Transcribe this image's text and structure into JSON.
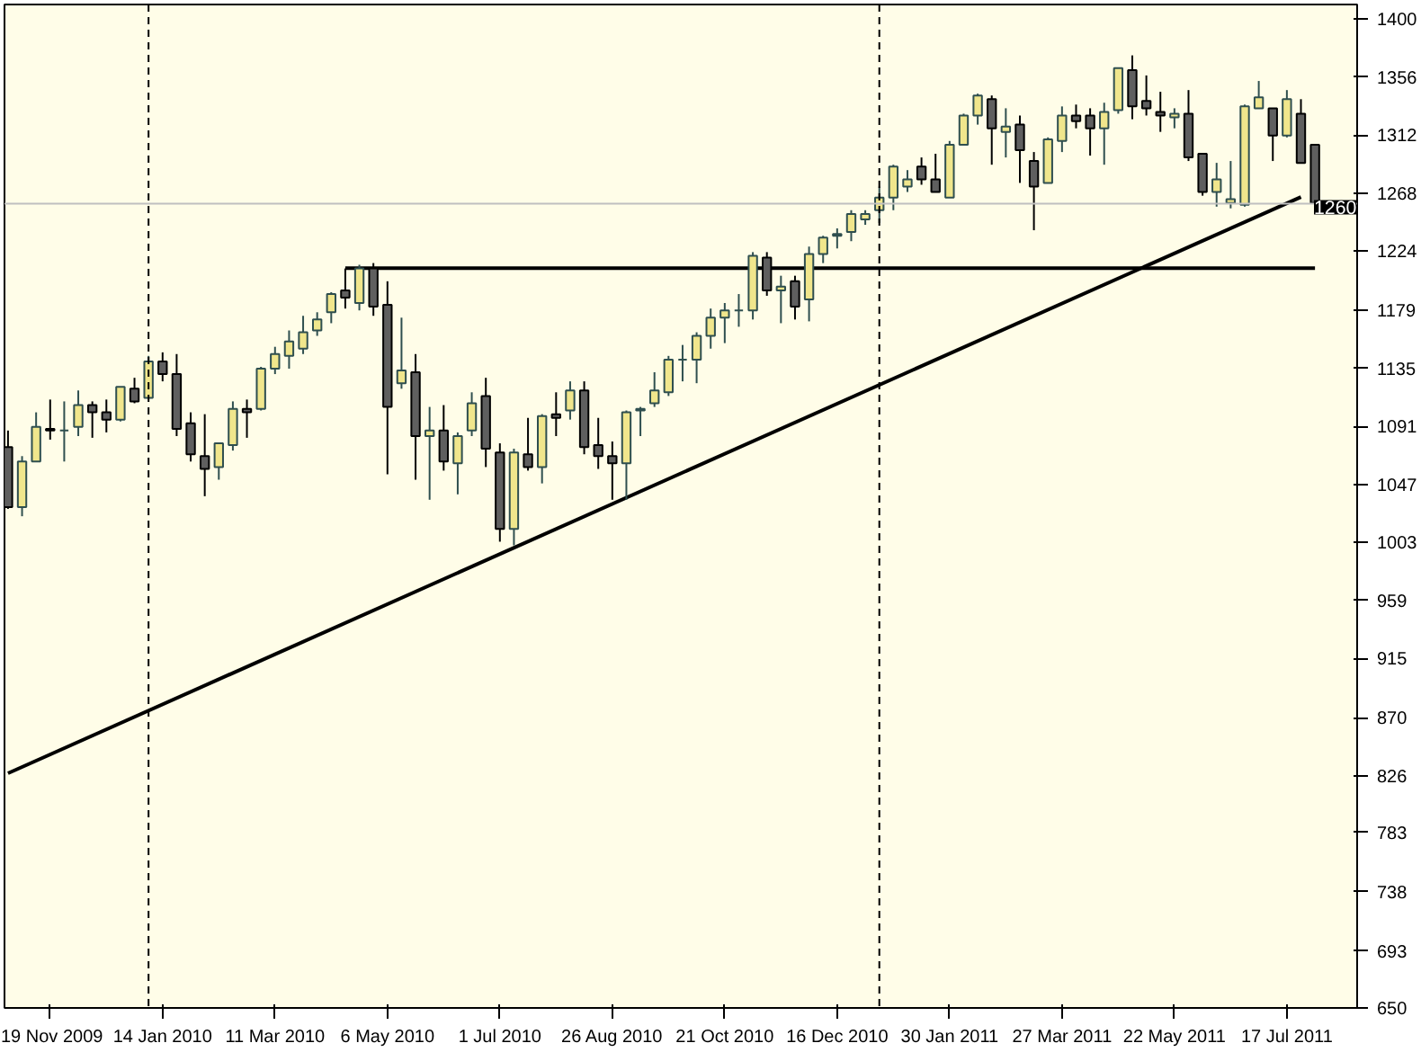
{
  "chart_data": {
    "type": "candlestick",
    "categories": [
      null,
      null,
      null,
      "19 Nov 2009",
      null,
      null,
      null,
      null,
      null,
      null,
      null,
      "14 Jan 2010",
      null,
      null,
      null,
      null,
      null,
      null,
      null,
      "11 Mar 2010",
      null,
      null,
      null,
      null,
      null,
      null,
      null,
      "6 May 2010",
      null,
      null,
      null,
      null,
      null,
      null,
      null,
      "1 Jul 2010",
      null,
      null,
      null,
      null,
      null,
      null,
      null,
      "26 Aug 2010",
      null,
      null,
      null,
      null,
      null,
      null,
      null,
      "21 Oct 2010",
      null,
      null,
      null,
      null,
      null,
      null,
      null,
      "16 Dec 2010",
      null,
      null,
      null,
      null,
      null,
      null,
      null,
      "30 Jan 2011",
      null,
      null,
      null,
      null,
      null,
      null,
      null,
      "27 Mar 2011",
      null,
      null,
      null,
      null,
      null,
      null,
      null,
      "22 May 2011",
      null,
      null,
      null,
      null,
      null,
      null,
      null,
      "17 Jul 2011",
      null,
      null
    ],
    "ohlc": [
      [
        1075.4,
        1087.9,
        1028.5,
        1029.8
      ],
      [
        1029.8,
        1068.5,
        1022.9,
        1064.4
      ],
      [
        1064.4,
        1101.7,
        1064.4,
        1090.6
      ],
      [
        1089.2,
        1111.4,
        1081.0,
        1087.9
      ],
      [
        1087.9,
        1110.0,
        1064.4,
        1087.9
      ],
      [
        1090.6,
        1118.3,
        1083.7,
        1107.2
      ],
      [
        1107.2,
        1110.0,
        1082.4,
        1101.7
      ],
      [
        1101.7,
        1111.4,
        1086.5,
        1096.2
      ],
      [
        1096.2,
        1121.0,
        1094.8,
        1121.0
      ],
      [
        1119.6,
        1127.9,
        1108.6,
        1110.0
      ],
      [
        1112.7,
        1144.5,
        1112.7,
        1140.3
      ],
      [
        1140.3,
        1147.2,
        1125.2,
        1130.7
      ],
      [
        1130.7,
        1145.9,
        1083.7,
        1089.2
      ],
      [
        1093.4,
        1101.7,
        1064.4,
        1069.9
      ],
      [
        1068.5,
        1100.3,
        1038.1,
        1058.8
      ],
      [
        1060.2,
        1078.2,
        1050.6,
        1078.2
      ],
      [
        1076.8,
        1110.0,
        1072.7,
        1104.4
      ],
      [
        1104.4,
        1111.4,
        1082.4,
        1101.7
      ],
      [
        1104.4,
        1136.2,
        1103.1,
        1134.8
      ],
      [
        1134.8,
        1151.4,
        1130.7,
        1145.9
      ],
      [
        1144.5,
        1163.8,
        1134.8,
        1155.5
      ],
      [
        1150.0,
        1174.9,
        1145.9,
        1162.4
      ],
      [
        1163.8,
        1177.6,
        1159.7,
        1172.1
      ],
      [
        1177.6,
        1192.8,
        1169.3,
        1191.4
      ],
      [
        1194.2,
        1210.8,
        1180.4,
        1188.7
      ],
      [
        1184.6,
        1213.6,
        1179.0,
        1210.8
      ],
      [
        1210.8,
        1214.9,
        1174.9,
        1181.8
      ],
      [
        1183.2,
        1201.1,
        1054.7,
        1105.8
      ],
      [
        1123.8,
        1173.5,
        1119.6,
        1133.4
      ],
      [
        1132.1,
        1145.9,
        1050.6,
        1083.7
      ],
      [
        1083.7,
        1105.8,
        1035.4,
        1087.9
      ],
      [
        1087.9,
        1107.2,
        1057.5,
        1064.4
      ],
      [
        1063.0,
        1086.5,
        1039.5,
        1083.7
      ],
      [
        1087.9,
        1116.9,
        1083.7,
        1108.6
      ],
      [
        1114.1,
        1127.9,
        1060.2,
        1074.1
      ],
      [
        1071.3,
        1078.2,
        1003.6,
        1013.3
      ],
      [
        1013.3,
        1074.1,
        1000.8,
        1071.3
      ],
      [
        1069.9,
        1097.5,
        1057.5,
        1060.2
      ],
      [
        1060.2,
        1100.3,
        1047.8,
        1098.9
      ],
      [
        1100.3,
        1116.9,
        1083.7,
        1097.5
      ],
      [
        1103.1,
        1125.2,
        1096.2,
        1118.3
      ],
      [
        1118.3,
        1125.2,
        1069.9,
        1075.4
      ],
      [
        1076.8,
        1097.5,
        1058.8,
        1068.5
      ],
      [
        1068.5,
        1079.6,
        1035.4,
        1063.0
      ],
      [
        1063.0,
        1103.1,
        1035.4,
        1101.7
      ],
      [
        1103.1,
        1105.8,
        1083.7,
        1104.4
      ],
      [
        1108.6,
        1132.1,
        1105.8,
        1118.3
      ],
      [
        1116.9,
        1144.5,
        1114.1,
        1141.7
      ],
      [
        1141.7,
        1152.8,
        1125.2,
        1141.7
      ],
      [
        1141.7,
        1162.4,
        1123.8,
        1159.7
      ],
      [
        1159.7,
        1180.4,
        1150.0,
        1173.5
      ],
      [
        1173.5,
        1184.6,
        1154.2,
        1179.0
      ],
      [
        1179.0,
        1191.4,
        1166.6,
        1179.0
      ],
      [
        1179.0,
        1223.2,
        1172.1,
        1220.4
      ],
      [
        1219.1,
        1223.2,
        1190.1,
        1194.2
      ],
      [
        1194.2,
        1205.3,
        1169.3,
        1197.0
      ],
      [
        1201.1,
        1205.3,
        1172.1,
        1181.8
      ],
      [
        1187.3,
        1227.4,
        1170.7,
        1221.8
      ],
      [
        1221.8,
        1235.6,
        1214.9,
        1234.3
      ],
      [
        1235.6,
        1241.2,
        1226.0,
        1237.0
      ],
      [
        1238.4,
        1255.0,
        1231.5,
        1252.2
      ],
      [
        1248.1,
        1255.0,
        1243.9,
        1252.2
      ],
      [
        1255.0,
        1272.9,
        1245.3,
        1264.6
      ],
      [
        1264.6,
        1289.5,
        1255.0,
        1288.1
      ],
      [
        1272.9,
        1285.4,
        1268.8,
        1278.4
      ],
      [
        1288.1,
        1295.0,
        1274.3,
        1278.4
      ],
      [
        1278.4,
        1297.8,
        1268.8,
        1268.8
      ],
      [
        1264.6,
        1307.5,
        1264.6,
        1304.7
      ],
      [
        1304.7,
        1328.2,
        1304.7,
        1326.8
      ],
      [
        1326.8,
        1343.4,
        1319.9,
        1342.0
      ],
      [
        1339.2,
        1342.0,
        1289.5,
        1317.1
      ],
      [
        1314.4,
        1332.3,
        1295.0,
        1318.5
      ],
      [
        1319.9,
        1326.8,
        1275.7,
        1300.5
      ],
      [
        1292.3,
        1299.1,
        1239.8,
        1272.9
      ],
      [
        1275.7,
        1310.2,
        1275.7,
        1308.8
      ],
      [
        1307.5,
        1333.7,
        1299.1,
        1326.8
      ],
      [
        1326.8,
        1335.1,
        1317.1,
        1322.6
      ],
      [
        1326.8,
        1332.3,
        1296.4,
        1317.1
      ],
      [
        1317.1,
        1336.5,
        1289.5,
        1329.5
      ],
      [
        1330.9,
        1362.7,
        1328.2,
        1362.7
      ],
      [
        1361.3,
        1372.4,
        1324.0,
        1333.7
      ],
      [
        1337.8,
        1357.2,
        1326.8,
        1332.3
      ],
      [
        1329.5,
        1344.8,
        1314.4,
        1326.8
      ],
      [
        1325.4,
        1332.3,
        1317.1,
        1328.2
      ],
      [
        1328.2,
        1346.1,
        1292.3,
        1295.0
      ],
      [
        1297.8,
        1297.8,
        1266.0,
        1268.8
      ],
      [
        1268.8,
        1290.9,
        1257.7,
        1278.4
      ],
      [
        1260.5,
        1292.3,
        1256.4,
        1263.3
      ],
      [
        1259.1,
        1335.1,
        1257.7,
        1333.7
      ],
      [
        1332.3,
        1353.0,
        1332.3,
        1340.6
      ],
      [
        1332.3,
        1332.3,
        1292.3,
        1311.6
      ],
      [
        1311.6,
        1346.1,
        1310.2,
        1339.2
      ],
      [
        1328.2,
        1339.2,
        1290.9,
        1290.9
      ],
      [
        1304.7,
        1304.7,
        1260.5,
        1260.5
      ]
    ],
    "series": [
      {
        "type": "line",
        "values": [
          828,
          null,
          null,
          null,
          null,
          null,
          null,
          null,
          null,
          null,
          null,
          null,
          null,
          null,
          null,
          null,
          null,
          null,
          null,
          null,
          null,
          null,
          null,
          null,
          null,
          null,
          null,
          null,
          null,
          null,
          null,
          null,
          null,
          null,
          null,
          null,
          null,
          null,
          null,
          null,
          null,
          null,
          null,
          null,
          null,
          null,
          null,
          null,
          null,
          null,
          null,
          null,
          null,
          null,
          null,
          null,
          null,
          null,
          null,
          null,
          null,
          null,
          null,
          null,
          null,
          null,
          null,
          null,
          null,
          null,
          null,
          null,
          null,
          null,
          null,
          null,
          null,
          null,
          null,
          null,
          null,
          null,
          null,
          null,
          null,
          null,
          null,
          null,
          null,
          null,
          null,
          null,
          1265,
          null
        ],
        "color": "#000000"
      },
      {
        "type": "line",
        "values": [
          null,
          null,
          null,
          null,
          null,
          null,
          null,
          null,
          null,
          null,
          null,
          null,
          null,
          null,
          null,
          null,
          null,
          null,
          null,
          null,
          null,
          null,
          null,
          null,
          1211,
          null,
          null,
          null,
          null,
          null,
          null,
          null,
          null,
          null,
          null,
          null,
          null,
          null,
          null,
          null,
          null,
          null,
          null,
          null,
          null,
          null,
          null,
          null,
          null,
          null,
          null,
          null,
          null,
          null,
          null,
          null,
          null,
          null,
          null,
          null,
          null,
          null,
          null,
          null,
          null,
          null,
          null,
          null,
          null,
          null,
          null,
          null,
          null,
          null,
          null,
          null,
          null,
          null,
          null,
          null,
          null,
          null,
          null,
          null,
          null,
          null,
          null,
          null,
          null,
          null,
          null,
          null,
          null,
          1211
        ],
        "color": "#000000"
      }
    ],
    "ref_lines": [
      {
        "axis": "y",
        "value": 1260,
        "label": "1260",
        "color": "#c0c0c0"
      }
    ],
    "ylim": [
      650,
      1411
    ],
    "yticks": [
      650,
      693,
      738,
      783,
      826,
      870,
      915,
      959,
      1003,
      1047,
      1091,
      1135,
      1179,
      1224,
      1268,
      1312,
      1356,
      1400
    ],
    "grid": false
  }
}
